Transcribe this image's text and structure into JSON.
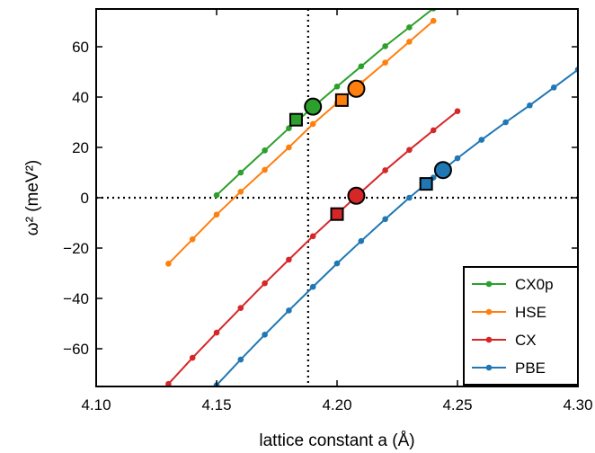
{
  "chart_data": {
    "type": "line",
    "xlabel": "lattice constant a (Å)",
    "ylabel": "ω² (meV²)",
    "xlim": [
      4.1,
      4.3
    ],
    "ylim": [
      -75,
      75
    ],
    "xticks": [
      "4.10",
      "4.15",
      "4.20",
      "4.25",
      "4.30"
    ],
    "xtick_values": [
      4.1,
      4.15,
      4.2,
      4.25,
      4.3
    ],
    "yticks": [
      "−60",
      "−40",
      "−20",
      "0",
      "20",
      "40",
      "60"
    ],
    "ytick_values": [
      -60,
      -40,
      -20,
      0,
      20,
      40,
      60
    ],
    "reference_lines": {
      "x": 4.188,
      "y": 0,
      "style": "dotted"
    },
    "legend_position": "lower-right",
    "series": [
      {
        "name": "CX0p",
        "color": "#2ca02c",
        "x": [
          4.15,
          4.16,
          4.17,
          4.18,
          4.19,
          4.2,
          4.21,
          4.22,
          4.23,
          4.24
        ],
        "y": [
          1.0,
          10.0,
          18.8,
          27.6,
          36.0,
          44.2,
          52.2,
          60.2,
          67.7,
          75.2
        ],
        "circle_marker": {
          "x": 4.19,
          "y": 36.2
        },
        "square_marker": {
          "x": 4.183,
          "y": 31.0
        }
      },
      {
        "name": "HSE",
        "color": "#ff7f0e",
        "x": [
          4.13,
          4.14,
          4.15,
          4.16,
          4.17,
          4.18,
          4.19,
          4.2,
          4.21,
          4.22,
          4.23,
          4.24
        ],
        "y": [
          -26.2,
          -16.5,
          -6.7,
          2.4,
          11.1,
          20.0,
          29.3,
          37.6,
          45.6,
          53.7,
          62.0,
          70.3
        ],
        "circle_marker": {
          "x": 4.208,
          "y": 43.3
        },
        "square_marker": {
          "x": 4.202,
          "y": 38.8
        }
      },
      {
        "name": "CX",
        "color": "#d62728",
        "x": [
          4.13,
          4.14,
          4.15,
          4.16,
          4.17,
          4.18,
          4.19,
          4.2,
          4.21,
          4.22,
          4.23,
          4.24,
          4.25
        ],
        "y": [
          -74.0,
          -63.6,
          -53.6,
          -43.8,
          -34.0,
          -24.6,
          -15.3,
          -6.5,
          2.3,
          10.9,
          19.0,
          26.8,
          34.4
        ],
        "circle_marker": {
          "x": 4.208,
          "y": 0.8
        },
        "square_marker": {
          "x": 4.2,
          "y": -6.5
        }
      },
      {
        "name": "PBE",
        "color": "#1f77b4",
        "x": [
          4.15,
          4.16,
          4.17,
          4.18,
          4.19,
          4.2,
          4.21,
          4.22,
          4.23,
          4.24,
          4.25,
          4.26,
          4.27,
          4.28,
          4.29,
          4.3
        ],
        "y": [
          -74.5,
          -64.3,
          -54.4,
          -44.8,
          -35.4,
          -26.1,
          -17.2,
          -8.5,
          0.0,
          8.0,
          15.7,
          23.0,
          30.0,
          36.7,
          43.8,
          50.9
        ],
        "circle_marker": {
          "x": 4.244,
          "y": 11.0
        },
        "square_marker": {
          "x": 4.237,
          "y": 5.5
        }
      }
    ]
  }
}
